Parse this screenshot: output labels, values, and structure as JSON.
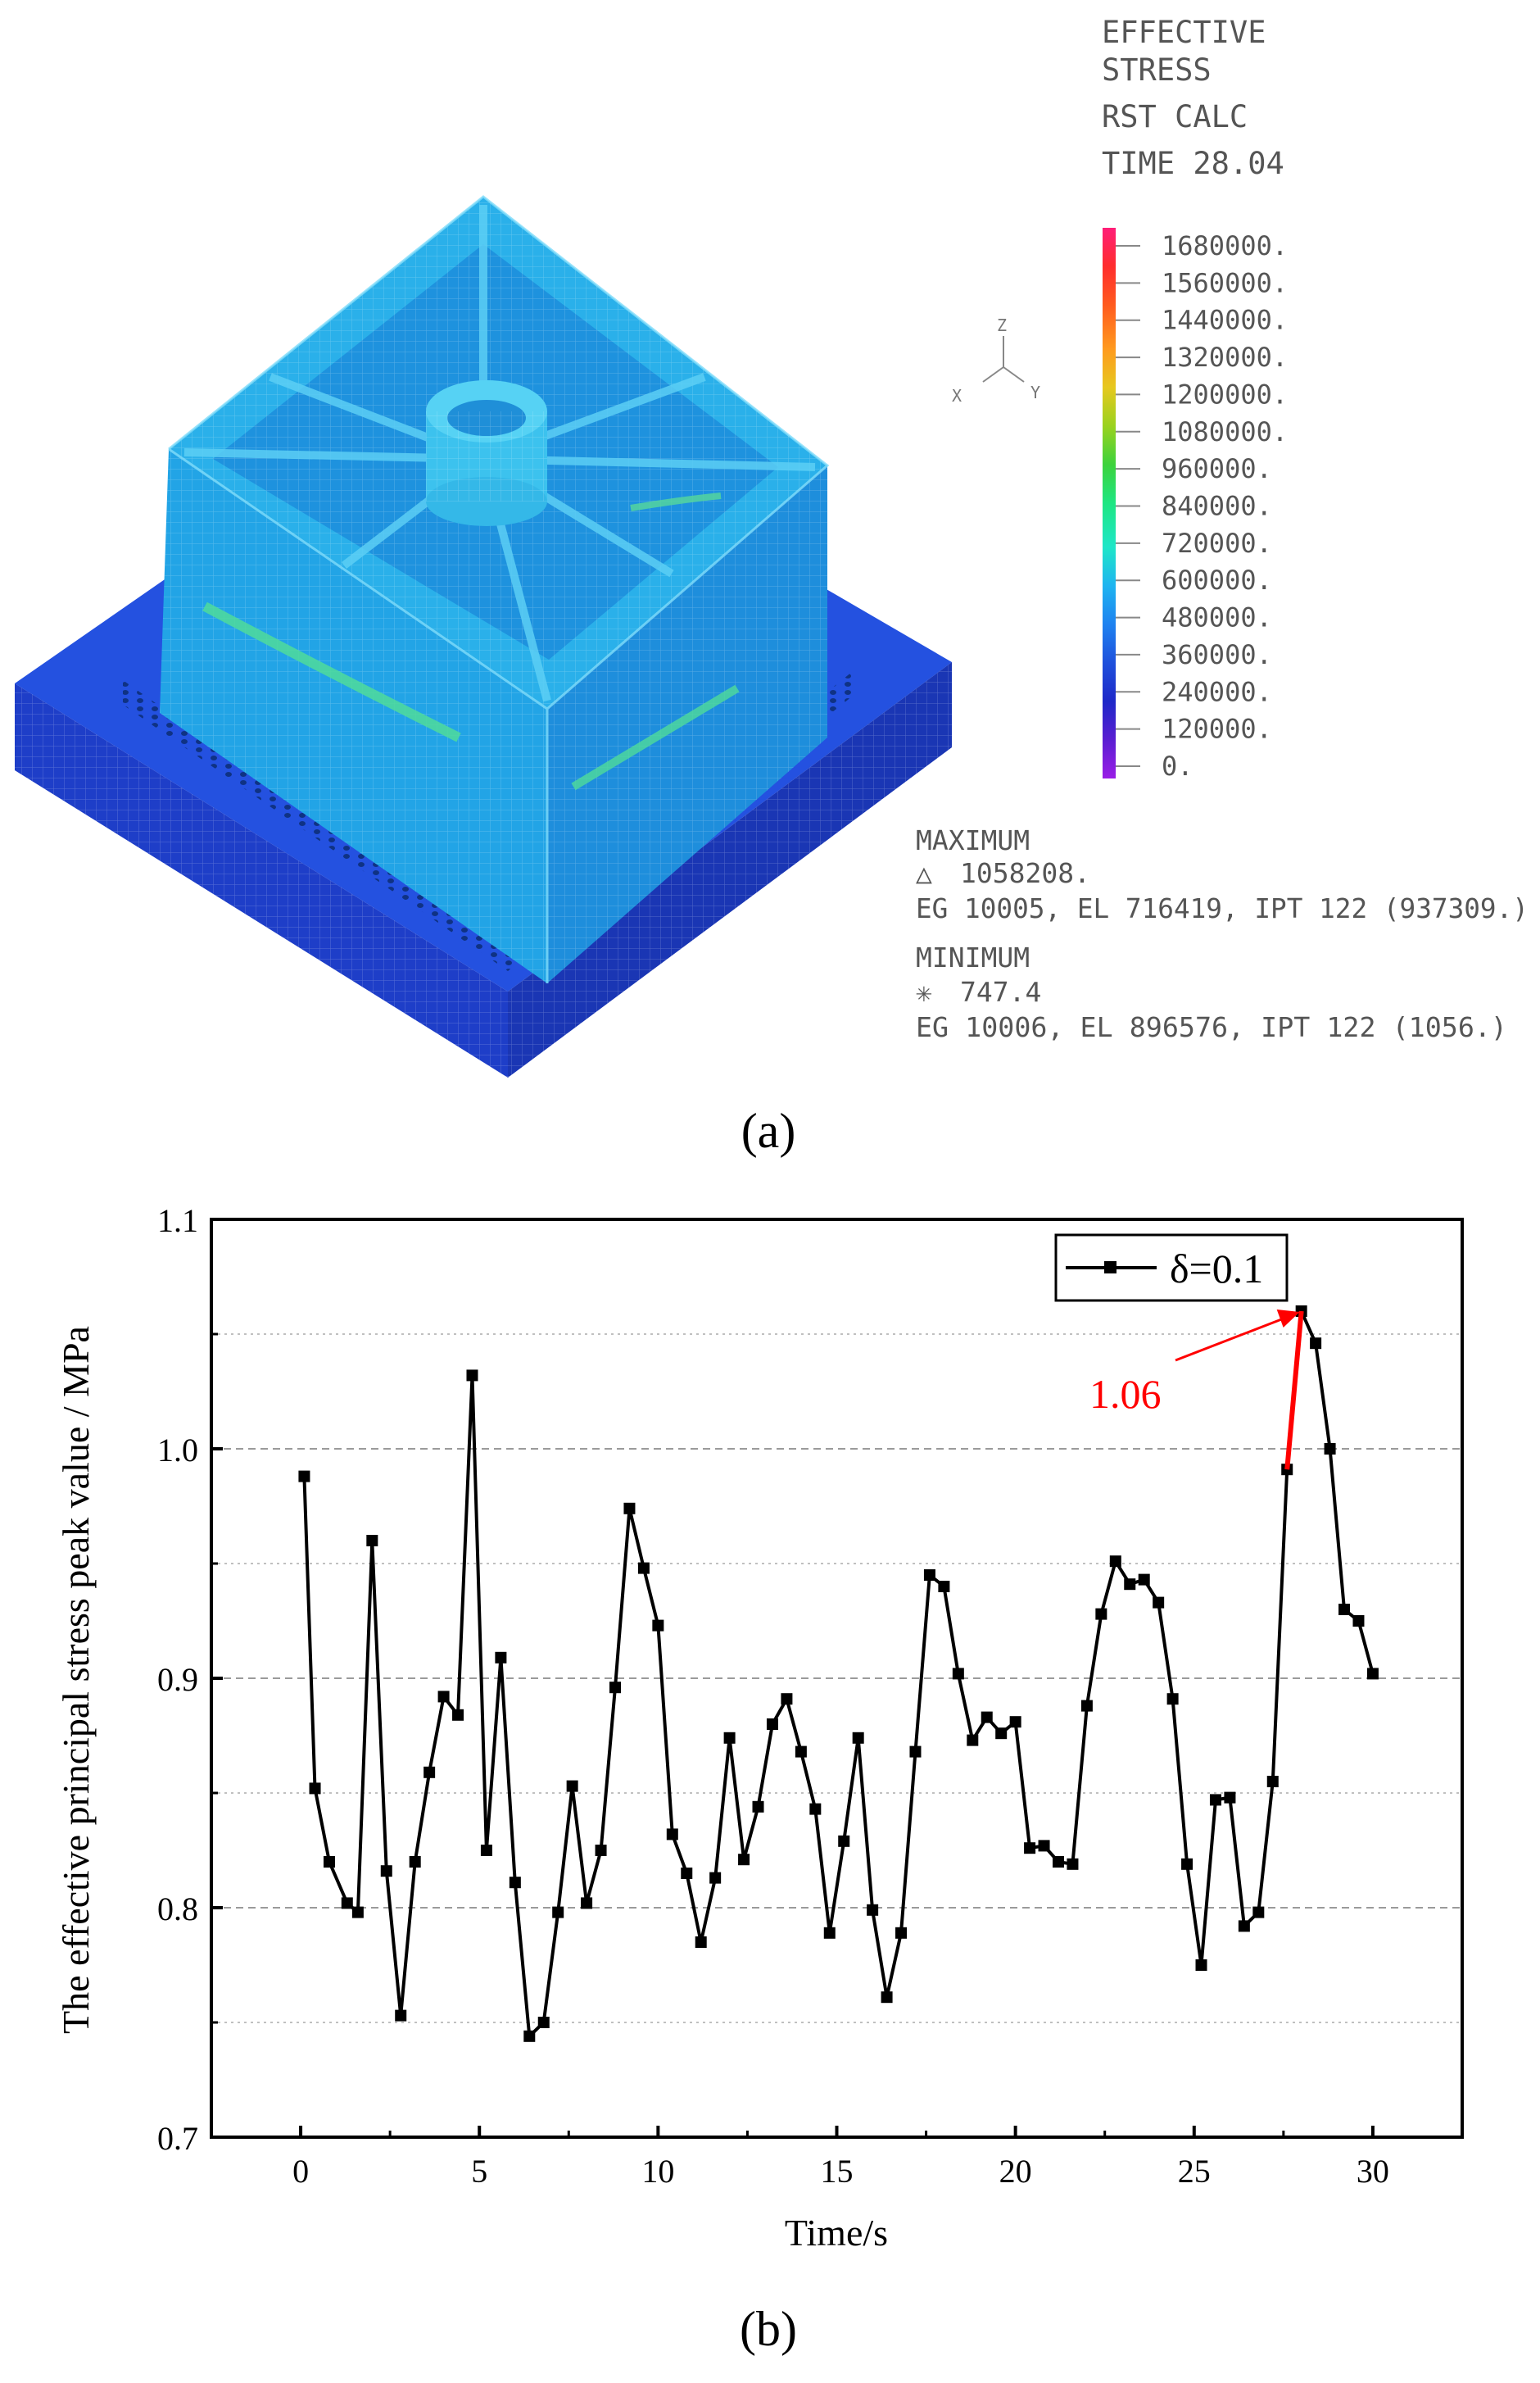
{
  "panel_a": {
    "label": "(a)",
    "header": [
      "EFFECTIVE",
      "STRESS",
      "RST CALC",
      "TIME  28.04"
    ],
    "axes": {
      "z": "Z",
      "x": "X",
      "y": "Y"
    },
    "colorbar": {
      "labels": [
        "1680000.",
        "1560000.",
        "1440000.",
        "1320000.",
        "1200000.",
        "1080000.",
        "960000.",
        "840000.",
        "720000.",
        "600000.",
        "480000.",
        "360000.",
        "240000.",
        "120000.",
        "0."
      ],
      "colors": [
        "#ff1e78",
        "#ff2d2d",
        "#ff5a1e",
        "#ff9a1e",
        "#e6c81e",
        "#9ad21e",
        "#3cd23c",
        "#1ee682",
        "#1ee6c8",
        "#1eb4f0",
        "#1e82f0",
        "#1e50dc",
        "#1e28c8",
        "#5a1ed2",
        "#9a1ee6"
      ]
    },
    "stats": {
      "max_title": "MAXIMUM",
      "max_symbol": "△",
      "max_value": "1058208.",
      "max_detail": "EG 10005, EL 716419, IPT 122 (937309.)",
      "min_title": "MINIMUM",
      "min_symbol": "✳",
      "min_value": "747.4",
      "min_detail": "EG 10006, EL 896576, IPT 122 (1056.)"
    }
  },
  "chart_data": {
    "type": "line",
    "label": "(b)",
    "xlabel": "Time/s",
    "ylabel": "The effective principal stress peak value / MPa",
    "xlim": [
      -2.5,
      32.5
    ],
    "ylim": [
      0.7,
      1.1
    ],
    "xticks": [
      0,
      5,
      10,
      15,
      20,
      25,
      30
    ],
    "yticks": [
      0.7,
      0.8,
      0.9,
      1.0,
      1.1
    ],
    "ytick_labels": [
      "0.7",
      "0.8",
      "0.9",
      "1.0",
      "1.1"
    ],
    "grid": "dashed horizontal",
    "legend_position": "top-right",
    "series": [
      {
        "name": "δ=0.1",
        "color": "#000000",
        "x": [
          0.1,
          0.4,
          0.8,
          1.3,
          1.6,
          2.0,
          2.4,
          2.8,
          3.2,
          3.6,
          4.0,
          4.4,
          4.8,
          5.2,
          5.6,
          6.0,
          6.4,
          6.8,
          7.2,
          7.6,
          8.0,
          8.4,
          8.8,
          9.2,
          9.6,
          10.0,
          10.4,
          10.8,
          11.2,
          11.6,
          12.0,
          12.4,
          12.8,
          13.2,
          13.6,
          14.0,
          14.4,
          14.8,
          15.2,
          15.6,
          16.0,
          16.4,
          16.8,
          17.2,
          17.6,
          18.0,
          18.4,
          18.8,
          19.2,
          19.6,
          20.0,
          20.4,
          20.8,
          21.2,
          21.6,
          22.0,
          22.4,
          22.8,
          23.2,
          23.6,
          24.0,
          24.4,
          24.8,
          25.2,
          25.6,
          26.0,
          26.4,
          26.8,
          27.2,
          27.6,
          28.0,
          28.4,
          28.8,
          29.2,
          29.6,
          30.0
        ],
        "y": [
          0.988,
          0.852,
          0.82,
          0.802,
          0.798,
          0.96,
          0.816,
          0.753,
          0.82,
          0.859,
          0.892,
          0.884,
          1.032,
          0.825,
          0.909,
          0.811,
          0.744,
          0.75,
          0.798,
          0.853,
          0.802,
          0.825,
          0.896,
          0.974,
          0.948,
          0.923,
          0.832,
          0.815,
          0.785,
          0.813,
          0.874,
          0.821,
          0.844,
          0.88,
          0.891,
          0.868,
          0.843,
          0.789,
          0.829,
          0.874,
          0.799,
          0.761,
          0.789,
          0.868,
          0.945,
          0.94,
          0.902,
          0.873,
          0.883,
          0.876,
          0.881,
          0.826,
          0.827,
          0.82,
          0.819,
          0.888,
          0.928,
          0.951,
          0.941,
          0.943,
          0.933,
          0.891,
          0.819,
          0.775,
          0.847,
          0.848,
          0.792,
          0.798,
          0.855,
          0.991,
          1.06,
          1.046,
          1.0,
          0.93,
          0.925,
          0.902
        ]
      }
    ],
    "annotation": {
      "text": "1.06",
      "color": "#ff0000",
      "x": 28.0,
      "y": 1.06
    }
  }
}
